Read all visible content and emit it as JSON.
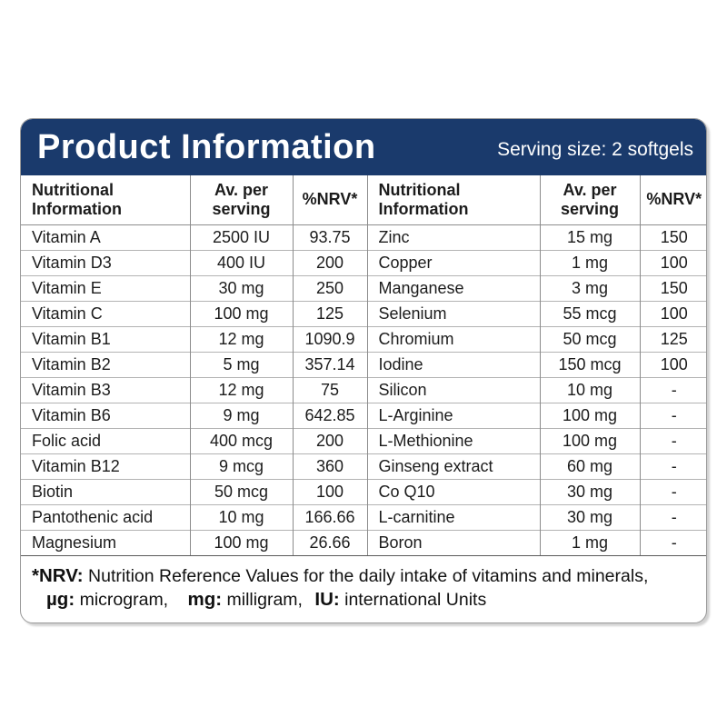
{
  "header": {
    "title": "Product Information",
    "serving_size": "Serving size: 2 softgels"
  },
  "colors": {
    "band_navy": "#1a3a6c",
    "border_gray": "#8c8c8c",
    "text": "#1c1c1c"
  },
  "table": {
    "columns": {
      "nutrition": "Nutritional Information",
      "serving": "Av. per serving",
      "nrv": "%NRV*"
    },
    "rows": [
      {
        "l_name": "Vitamin A",
        "l_amount": "2500 IU",
        "l_nrv": "93.75",
        "r_name": "Zinc",
        "r_amount": "15 mg",
        "r_nrv": "150"
      },
      {
        "l_name": "Vitamin D3",
        "l_amount": "400 IU",
        "l_nrv": "200",
        "r_name": "Copper",
        "r_amount": "1 mg",
        "r_nrv": "100"
      },
      {
        "l_name": "Vitamin E",
        "l_amount": "30 mg",
        "l_nrv": "250",
        "r_name": "Manganese",
        "r_amount": "3 mg",
        "r_nrv": "150"
      },
      {
        "l_name": "Vitamin C",
        "l_amount": "100 mg",
        "l_nrv": "125",
        "r_name": "Selenium",
        "r_amount": "55 mcg",
        "r_nrv": "100"
      },
      {
        "l_name": "Vitamin B1",
        "l_amount": "12 mg",
        "l_nrv": "1090.9",
        "r_name": "Chromium",
        "r_amount": "50 mcg",
        "r_nrv": "125"
      },
      {
        "l_name": "Vitamin B2",
        "l_amount": "5 mg",
        "l_nrv": "357.14",
        "r_name": "Iodine",
        "r_amount": "150 mcg",
        "r_nrv": "100"
      },
      {
        "l_name": "Vitamin B3",
        "l_amount": "12 mg",
        "l_nrv": "75",
        "r_name": "Silicon",
        "r_amount": "10 mg",
        "r_nrv": "-"
      },
      {
        "l_name": "Vitamin B6",
        "l_amount": "9 mg",
        "l_nrv": "642.85",
        "r_name": "L-Arginine",
        "r_amount": "100 mg",
        "r_nrv": "-"
      },
      {
        "l_name": "Folic acid",
        "l_amount": "400 mcg",
        "l_nrv": "200",
        "r_name": "L-Methionine",
        "r_amount": "100 mg",
        "r_nrv": "-"
      },
      {
        "l_name": "Vitamin B12",
        "l_amount": "9 mcg",
        "l_nrv": "360",
        "r_name": "Ginseng extract",
        "r_amount": "60 mg",
        "r_nrv": "-"
      },
      {
        "l_name": "Biotin",
        "l_amount": "50 mcg",
        "l_nrv": "100",
        "r_name": "Co Q10",
        "r_amount": "30 mg",
        "r_nrv": "-"
      },
      {
        "l_name": "Pantothenic acid",
        "l_amount": "10 mg",
        "l_nrv": "166.66",
        "r_name": "L-carnitine",
        "r_amount": "30 mg",
        "r_nrv": "-"
      },
      {
        "l_name": "Magnesium",
        "l_amount": "100 mg",
        "l_nrv": "26.66",
        "r_name": "Boron",
        "r_amount": "1 mg",
        "r_nrv": "-"
      }
    ]
  },
  "footnote": {
    "nrv_label": "*NRV:",
    "nrv_text": " Nutrition Reference Values for the daily intake of vitamins and minerals,",
    "ug_label": "µg:",
    "ug_text": " microgram,",
    "mg_label": "mg:",
    "mg_text": " milligram,",
    "iu_label": "IU:",
    "iu_text": " international Units"
  }
}
